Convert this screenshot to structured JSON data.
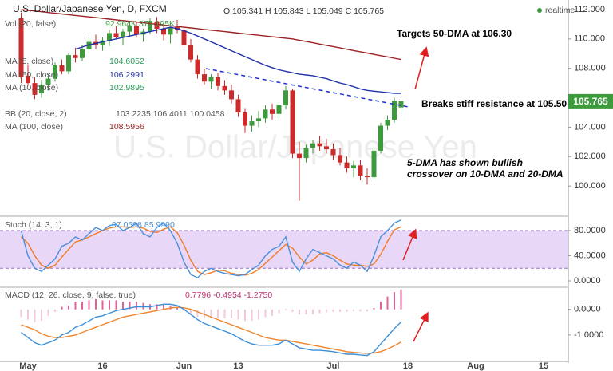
{
  "chart_data": [
    {
      "type": "candlestick",
      "title": "U.S. Dollar/Japanese Yen, D, FXCM",
      "ohlc_label": "O 105.341 H 105.843 L 105.049 C 105.765",
      "status": "realtime",
      "watermark": "U.S. Dollar/Japanese Yen",
      "indicators": [
        {
          "label": "Vol (20, false)",
          "values": "92.964K 377.195K"
        },
        {
          "label": "MA (5, close)",
          "values": "104.6052"
        },
        {
          "label": "MA (50, close)",
          "values": "106.2991"
        },
        {
          "label": "MA (10, close)",
          "values": "102.9895"
        },
        {
          "label": "BB (20, close, 2)",
          "values": "103.2235 106.4011 100.0458"
        },
        {
          "label": "MA (100, close)",
          "values": "108.5956"
        }
      ],
      "annotations": [
        "Targets 50-DMA at 106.30",
        "Breaks stiff resistance at 105.50",
        "5-DMA has shown bullish",
        "crossover on 10-DMA and 20-DMA"
      ],
      "ylim": [
        98.0,
        112.65
      ],
      "yticks": [
        {
          "value": 112,
          "label": "112.000"
        },
        {
          "value": 110,
          "label": "110.000"
        },
        {
          "value": 108,
          "label": "108.000"
        },
        {
          "value": 106,
          "label": "106.000"
        },
        {
          "value": 104,
          "label": "104.000"
        },
        {
          "value": 102,
          "label": "102.000"
        },
        {
          "value": 100,
          "label": "100.000"
        }
      ],
      "up_color": "#3d9b3d",
      "down_color": "#cc2b2b",
      "open": [
        111.4,
        107.5,
        107.0,
        106.3,
        106.9,
        107.3,
        108.2,
        107.8,
        108.9,
        108.7,
        109.3,
        109.8,
        109.6,
        109.9,
        110.4,
        110.1,
        110.5,
        110.9,
        110.3,
        110.5,
        111.2,
        110.7,
        110.3,
        110.8,
        110.6,
        109.6,
        108.6,
        107.6,
        107.1,
        107.4,
        106.8,
        106.5,
        105.9,
        105.0,
        104.1,
        104.4,
        104.6,
        105.2,
        104.9,
        105.5,
        106.5,
        102.2,
        101.9,
        102.6,
        102.9,
        102.7,
        102.5,
        102.1,
        101.6,
        101.2,
        101.4,
        100.7,
        100.6,
        102.4,
        104.1,
        104.5,
        105.341,
        null,
        null,
        null,
        null,
        null,
        null,
        null,
        null,
        null,
        null,
        null,
        null,
        null,
        null,
        null,
        null,
        null,
        null,
        null,
        null,
        null,
        null
      ],
      "high": [
        111.8,
        108.2,
        107.4,
        107.2,
        107.6,
        108.4,
        108.6,
        109.0,
        109.4,
        109.6,
        110.1,
        110.3,
        110.1,
        110.6,
        110.9,
        110.7,
        111.2,
        111.2,
        110.7,
        111.4,
        111.5,
        111.0,
        110.9,
        111.3,
        111.0,
        110.0,
        108.9,
        108.0,
        107.6,
        107.7,
        107.2,
        106.9,
        106.2,
        105.3,
        104.8,
        105.1,
        105.5,
        105.6,
        105.7,
        106.8,
        106.6,
        103.0,
        102.8,
        103.1,
        103.4,
        103.2,
        102.9,
        102.6,
        102.0,
        101.7,
        101.8,
        101.2,
        102.6,
        104.3,
        104.8,
        106.0,
        105.843,
        null,
        null,
        null,
        null,
        null,
        null,
        null,
        null,
        null,
        null,
        null,
        null,
        null,
        null,
        null,
        null,
        null,
        null,
        null,
        null,
        null,
        null
      ],
      "low": [
        107.0,
        106.8,
        105.9,
        106.0,
        106.5,
        107.1,
        107.6,
        107.6,
        108.4,
        108.5,
        109.0,
        109.3,
        109.2,
        109.5,
        110.0,
        109.6,
        110.2,
        110.1,
        109.8,
        110.3,
        110.4,
        109.9,
        109.7,
        110.4,
        109.4,
        108.4,
        107.3,
        106.9,
        106.6,
        106.5,
        106.2,
        105.6,
        104.7,
        103.6,
        103.7,
        104.0,
        104.3,
        104.5,
        104.6,
        105.2,
        101.9,
        99.0,
        101.6,
        102.2,
        102.4,
        102.2,
        101.8,
        101.4,
        100.9,
        100.6,
        100.4,
        100.1,
        100.4,
        102.2,
        103.8,
        104.3,
        105.049,
        null,
        null,
        null,
        null,
        null,
        null,
        null,
        null,
        null,
        null,
        null,
        null,
        null,
        null,
        null,
        null,
        null,
        null,
        null,
        null,
        null,
        null
      ],
      "close": [
        107.4,
        107.0,
        106.2,
        106.9,
        107.3,
        108.2,
        107.8,
        108.9,
        108.7,
        109.3,
        109.8,
        109.6,
        109.9,
        110.4,
        110.1,
        110.5,
        110.9,
        110.3,
        110.5,
        111.2,
        110.7,
        110.3,
        110.8,
        110.6,
        109.6,
        108.6,
        107.6,
        107.1,
        107.4,
        106.8,
        106.5,
        105.9,
        105.0,
        104.1,
        104.4,
        104.6,
        105.2,
        104.9,
        105.5,
        106.5,
        102.2,
        101.9,
        102.6,
        102.9,
        102.7,
        102.5,
        102.1,
        101.6,
        101.2,
        101.4,
        100.7,
        100.6,
        102.4,
        104.1,
        104.5,
        105.8,
        105.765,
        null,
        null,
        null,
        null,
        null,
        null,
        null,
        null,
        null,
        null,
        null,
        null,
        null,
        null,
        null,
        null,
        null,
        null,
        null,
        null,
        null,
        null
      ],
      "lines": [
        {
          "name": "MA (100, close)",
          "color": "#9b2226",
          "values": [
            112.0,
            111.95,
            111.9,
            111.85,
            111.8,
            111.75,
            111.7,
            111.65,
            111.6,
            111.55,
            111.5,
            111.45,
            111.4,
            111.35,
            111.3,
            111.25,
            111.2,
            111.15,
            111.1,
            111.05,
            111.0,
            110.95,
            110.9,
            110.85,
            110.8,
            110.75,
            110.7,
            110.65,
            110.6,
            110.55,
            110.5,
            110.45,
            110.4,
            110.35,
            110.3,
            110.25,
            110.2,
            110.15,
            110.1,
            110.05,
            110.0,
            109.91,
            109.83,
            109.74,
            109.65,
            109.56,
            109.48,
            109.39,
            109.3,
            109.21,
            109.13,
            109.04,
            108.95,
            108.86,
            108.78,
            108.69,
            108.6,
            null,
            null,
            null,
            null,
            null,
            null,
            null,
            null,
            null,
            null,
            null,
            null,
            null,
            null,
            null,
            null,
            null,
            null,
            null,
            null,
            null,
            null
          ]
        },
        {
          "name": "MA (50, close)",
          "color": "#2233aa",
          "values": [
            null,
            null,
            null,
            null,
            null,
            null,
            null,
            null,
            109.3,
            109.45,
            109.6,
            109.7,
            109.8,
            109.9,
            110.0,
            110.1,
            110.2,
            110.3,
            110.4,
            110.5,
            110.6,
            110.7,
            110.8,
            110.7,
            110.55,
            110.4,
            110.2,
            110.0,
            109.8,
            109.6,
            109.4,
            109.2,
            109.0,
            108.8,
            108.6,
            108.4,
            108.2,
            108.05,
            107.9,
            107.8,
            107.7,
            107.6,
            107.55,
            107.5,
            107.4,
            107.3,
            107.15,
            107.0,
            106.9,
            106.75,
            106.6,
            106.5,
            106.45,
            106.4,
            106.35,
            106.3,
            106.3,
            null,
            null,
            null,
            null,
            null,
            null,
            null,
            null,
            null,
            null,
            null,
            null,
            null,
            null,
            null,
            null,
            null,
            null,
            null,
            null,
            null,
            null
          ]
        }
      ]
    },
    {
      "type": "line",
      "title": "Stoch (14, 3, 1)",
      "legend_values": "97.0598 85.9990",
      "ylim": [
        -7.6,
        101.6
      ],
      "yticks": [
        {
          "value": 80,
          "label": "80.0000"
        },
        {
          "value": 40,
          "label": "40.0000"
        },
        {
          "value": 0,
          "label": "0.0000"
        }
      ],
      "band": [
        20,
        80
      ],
      "band_color": "#e9d7f8",
      "k": {
        "color": "#4a90d9",
        "values": [
          80,
          40,
          20,
          15,
          25,
          35,
          55,
          60,
          70,
          65,
          75,
          85,
          80,
          88,
          90,
          80,
          85,
          92,
          75,
          70,
          85,
          92,
          80,
          60,
          30,
          10,
          5,
          15,
          20,
          15,
          12,
          10,
          8,
          10,
          18,
          25,
          40,
          50,
          55,
          70,
          30,
          15,
          35,
          50,
          45,
          40,
          35,
          25,
          20,
          30,
          25,
          15,
          40,
          70,
          80,
          92,
          97.0598,
          null,
          null,
          null,
          null,
          null,
          null,
          null,
          null,
          null,
          null,
          null,
          null,
          null,
          null,
          null,
          null,
          null,
          null,
          null,
          null,
          null,
          null
        ]
      },
      "d": {
        "color": "#f07c28",
        "values": [
          70,
          60,
          40,
          25,
          20,
          25,
          38,
          50,
          62,
          65,
          70,
          75,
          80,
          84,
          86,
          86,
          85,
          86,
          84,
          79,
          77,
          82,
          86,
          77,
          57,
          33,
          15,
          10,
          13,
          17,
          16,
          12,
          10,
          9,
          12,
          18,
          28,
          38,
          48,
          58,
          52,
          38,
          27,
          33,
          43,
          45,
          40,
          33,
          27,
          25,
          25,
          23,
          27,
          42,
          63,
          81,
          85.999,
          null,
          null,
          null,
          null,
          null,
          null,
          null,
          null,
          null,
          null,
          null,
          null,
          null,
          null,
          null,
          null,
          null,
          null,
          null,
          null,
          null,
          null
        ]
      }
    },
    {
      "type": "macd",
      "title": "MACD (12, 26, close, 9, false, true)",
      "legend_values": "0.7796 -0.4954 -1.2750",
      "ylim": [
        -2.0,
        0.8
      ],
      "yticks": [
        {
          "value": 0,
          "label": "0.0000"
        },
        {
          "value": -1,
          "label": "-1.0000"
        }
      ],
      "categories": [
        null,
        "May",
        null,
        null,
        null,
        null,
        null,
        null,
        null,
        null,
        null,
        null,
        "16",
        null,
        null,
        null,
        null,
        null,
        null,
        null,
        null,
        null,
        null,
        null,
        "Jun",
        null,
        null,
        null,
        null,
        null,
        null,
        null,
        "13",
        null,
        null,
        null,
        null,
        null,
        null,
        null,
        null,
        null,
        null,
        null,
        null,
        null,
        "Jul",
        null,
        null,
        null,
        null,
        null,
        null,
        null,
        null,
        null,
        null,
        "18",
        null,
        null,
        null,
        null,
        null,
        null,
        null,
        null,
        null,
        "Aug",
        null,
        null,
        null,
        null,
        null,
        null,
        null,
        null,
        null,
        "15",
        null,
        null
      ],
      "histogram": {
        "color": "#e0609a",
        "values": [
          -0.3,
          -0.4,
          -0.5,
          -0.45,
          -0.25,
          -0.1,
          0.1,
          0.15,
          0.3,
          0.3,
          0.35,
          0.4,
          0.35,
          0.35,
          0.35,
          0.3,
          0.3,
          0.3,
          0.25,
          0.2,
          0.2,
          0.2,
          0.15,
          0.07,
          -0.06,
          -0.2,
          -0.3,
          -0.35,
          -0.35,
          -0.35,
          -0.35,
          -0.35,
          -0.4,
          -0.45,
          -0.45,
          -0.4,
          -0.3,
          -0.25,
          -0.15,
          0.0,
          -0.1,
          -0.2,
          -0.2,
          -0.2,
          -0.15,
          -0.12,
          -0.1,
          -0.1,
          -0.1,
          -0.07,
          -0.08,
          -0.08,
          0.05,
          0.3,
          0.5,
          0.67,
          0.7796,
          null,
          null,
          null,
          null,
          null,
          null,
          null,
          null,
          null,
          null,
          null,
          null,
          null,
          null,
          null,
          null,
          null,
          null,
          null,
          null,
          null,
          null
        ]
      },
      "macd": {
        "color": "#3a8fd9",
        "values": [
          -0.9,
          -1.1,
          -1.3,
          -1.4,
          -1.3,
          -1.2,
          -1.0,
          -0.9,
          -0.7,
          -0.6,
          -0.45,
          -0.3,
          -0.25,
          -0.15,
          -0.05,
          0.0,
          0.05,
          0.1,
          0.1,
          0.1,
          0.15,
          0.2,
          0.2,
          0.15,
          0.0,
          -0.2,
          -0.4,
          -0.55,
          -0.65,
          -0.75,
          -0.85,
          -0.95,
          -1.1,
          -1.25,
          -1.35,
          -1.4,
          -1.4,
          -1.4,
          -1.35,
          -1.2,
          -1.35,
          -1.5,
          -1.55,
          -1.6,
          -1.6,
          -1.62,
          -1.65,
          -1.7,
          -1.75,
          -1.75,
          -1.78,
          -1.8,
          -1.65,
          -1.35,
          -1.05,
          -0.75,
          -0.4954,
          null,
          null,
          null,
          null,
          null,
          null,
          null,
          null,
          null,
          null,
          null,
          null,
          null,
          null,
          null,
          null,
          null,
          null,
          null,
          null,
          null,
          null
        ]
      },
      "signal": {
        "color": "#f0852d",
        "values": [
          -0.6,
          -0.7,
          -0.8,
          -0.95,
          -1.05,
          -1.1,
          -1.1,
          -1.05,
          -1.0,
          -0.9,
          -0.8,
          -0.7,
          -0.6,
          -0.5,
          -0.4,
          -0.3,
          -0.25,
          -0.2,
          -0.15,
          -0.1,
          -0.05,
          0.0,
          0.05,
          0.08,
          0.06,
          0.0,
          -0.1,
          -0.2,
          -0.3,
          -0.4,
          -0.5,
          -0.6,
          -0.7,
          -0.8,
          -0.9,
          -1.0,
          -1.1,
          -1.15,
          -1.2,
          -1.2,
          -1.25,
          -1.3,
          -1.35,
          -1.4,
          -1.45,
          -1.5,
          -1.55,
          -1.6,
          -1.65,
          -1.68,
          -1.7,
          -1.72,
          -1.7,
          -1.65,
          -1.55,
          -1.42,
          -1.275,
          null,
          null,
          null,
          null,
          null,
          null,
          null,
          null,
          null,
          null,
          null,
          null,
          null,
          null,
          null,
          null,
          null,
          null,
          null,
          null,
          null,
          null
        ]
      }
    }
  ]
}
